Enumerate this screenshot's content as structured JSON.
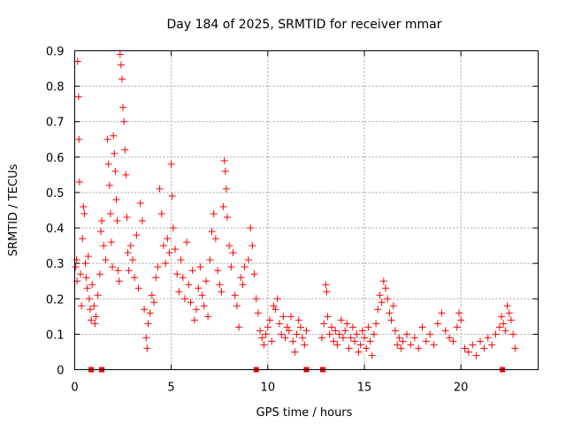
{
  "chart_data": {
    "type": "scatter",
    "title": "Day 184 of 2025, SRMTID for receiver mmar",
    "xlabel": "GPS time / hours",
    "ylabel": "SRMTID / TECUs",
    "xlim": [
      0,
      24
    ],
    "ylim": [
      0,
      0.9
    ],
    "xticks": [
      0,
      5,
      10,
      15,
      20
    ],
    "yticks": [
      0,
      0.1,
      0.2,
      0.3,
      0.4,
      0.5,
      0.6,
      0.7,
      0.8,
      0.9
    ],
    "grid": true,
    "marker": "+",
    "color": "#ff0000",
    "series": [
      {
        "name": "SRMTID",
        "points": [
          [
            0.05,
            0.29
          ],
          [
            0.1,
            0.31
          ],
          [
            0.12,
            0.25
          ],
          [
            0.15,
            0.87
          ],
          [
            0.2,
            0.77
          ],
          [
            0.22,
            0.65
          ],
          [
            0.25,
            0.53
          ],
          [
            0.3,
            0.27
          ],
          [
            0.35,
            0.18
          ],
          [
            0.4,
            0.37
          ],
          [
            0.45,
            0.46
          ],
          [
            0.5,
            0.44
          ],
          [
            0.55,
            0.3
          ],
          [
            0.6,
            0.26
          ],
          [
            0.65,
            0.23
          ],
          [
            0.7,
            0.32
          ],
          [
            0.75,
            0.2
          ],
          [
            0.8,
            0.17
          ],
          [
            0.85,
            0.14
          ],
          [
            0.9,
            0.24
          ],
          [
            1.0,
            0.18
          ],
          [
            1.05,
            0.13
          ],
          [
            1.1,
            0.15
          ],
          [
            1.2,
            0.21
          ],
          [
            1.3,
            0.27
          ],
          [
            1.35,
            0.39
          ],
          [
            1.4,
            0.42
          ],
          [
            1.5,
            0.35
          ],
          [
            1.6,
            0.31
          ],
          [
            1.7,
            0.65
          ],
          [
            1.75,
            0.58
          ],
          [
            1.8,
            0.52
          ],
          [
            1.85,
            0.44
          ],
          [
            1.9,
            0.36
          ],
          [
            1.95,
            0.29
          ],
          [
            2.0,
            0.66
          ],
          [
            2.05,
            0.61
          ],
          [
            2.1,
            0.56
          ],
          [
            2.15,
            0.48
          ],
          [
            2.2,
            0.42
          ],
          [
            2.25,
            0.28
          ],
          [
            2.3,
            0.25
          ],
          [
            2.35,
            0.89
          ],
          [
            2.4,
            0.86
          ],
          [
            2.45,
            0.82
          ],
          [
            2.5,
            0.74
          ],
          [
            2.55,
            0.7
          ],
          [
            2.6,
            0.62
          ],
          [
            2.65,
            0.55
          ],
          [
            2.7,
            0.43
          ],
          [
            2.75,
            0.33
          ],
          [
            2.8,
            0.28
          ],
          [
            2.9,
            0.35
          ],
          [
            3.0,
            0.31
          ],
          [
            3.1,
            0.26
          ],
          [
            3.2,
            0.38
          ],
          [
            3.3,
            0.23
          ],
          [
            3.4,
            0.47
          ],
          [
            3.5,
            0.42
          ],
          [
            3.6,
            0.17
          ],
          [
            3.7,
            0.09
          ],
          [
            3.75,
            0.06
          ],
          [
            3.8,
            0.13
          ],
          [
            3.9,
            0.16
          ],
          [
            4.0,
            0.21
          ],
          [
            4.1,
            0.19
          ],
          [
            4.2,
            0.26
          ],
          [
            4.3,
            0.29
          ],
          [
            4.4,
            0.51
          ],
          [
            4.5,
            0.44
          ],
          [
            4.6,
            0.35
          ],
          [
            4.7,
            0.3
          ],
          [
            4.8,
            0.37
          ],
          [
            4.9,
            0.33
          ],
          [
            5.0,
            0.58
          ],
          [
            5.05,
            0.49
          ],
          [
            5.1,
            0.4
          ],
          [
            5.2,
            0.34
          ],
          [
            5.3,
            0.27
          ],
          [
            5.4,
            0.22
          ],
          [
            5.5,
            0.31
          ],
          [
            5.6,
            0.26
          ],
          [
            5.7,
            0.2
          ],
          [
            5.8,
            0.36
          ],
          [
            5.9,
            0.24
          ],
          [
            6.0,
            0.19
          ],
          [
            6.1,
            0.28
          ],
          [
            6.2,
            0.14
          ],
          [
            6.3,
            0.17
          ],
          [
            6.4,
            0.23
          ],
          [
            6.5,
            0.29
          ],
          [
            6.6,
            0.21
          ],
          [
            6.7,
            0.18
          ],
          [
            6.8,
            0.25
          ],
          [
            6.9,
            0.15
          ],
          [
            7.0,
            0.31
          ],
          [
            7.1,
            0.39
          ],
          [
            7.2,
            0.44
          ],
          [
            7.3,
            0.37
          ],
          [
            7.4,
            0.28
          ],
          [
            7.5,
            0.24
          ],
          [
            7.6,
            0.22
          ],
          [
            7.7,
            0.46
          ],
          [
            7.75,
            0.59
          ],
          [
            7.8,
            0.56
          ],
          [
            7.85,
            0.51
          ],
          [
            7.9,
            0.43
          ],
          [
            8.0,
            0.35
          ],
          [
            8.1,
            0.29
          ],
          [
            8.2,
            0.33
          ],
          [
            8.3,
            0.21
          ],
          [
            8.4,
            0.18
          ],
          [
            8.5,
            0.12
          ],
          [
            8.6,
            0.26
          ],
          [
            8.7,
            0.24
          ],
          [
            8.8,
            0.29
          ],
          [
            9.0,
            0.31
          ],
          [
            9.1,
            0.4
          ],
          [
            9.2,
            0.35
          ],
          [
            9.3,
            0.27
          ],
          [
            9.4,
            0.2
          ],
          [
            9.5,
            0.16
          ],
          [
            9.6,
            0.11
          ],
          [
            9.7,
            0.09
          ],
          [
            9.8,
            0.07
          ],
          [
            9.9,
            0.1
          ],
          [
            10.0,
            0.12
          ],
          [
            10.1,
            0.14
          ],
          [
            10.2,
            0.08
          ],
          [
            10.3,
            0.18
          ],
          [
            10.4,
            0.17
          ],
          [
            10.5,
            0.2
          ],
          [
            10.6,
            0.13
          ],
          [
            10.7,
            0.1
          ],
          [
            10.8,
            0.15
          ],
          [
            10.9,
            0.09
          ],
          [
            11.0,
            0.12
          ],
          [
            11.1,
            0.11
          ],
          [
            11.2,
            0.15
          ],
          [
            11.3,
            0.08
          ],
          [
            11.4,
            0.05
          ],
          [
            11.5,
            0.1
          ],
          [
            11.6,
            0.14
          ],
          [
            11.7,
            0.12
          ],
          [
            11.8,
            0.09
          ],
          [
            11.9,
            0.07
          ],
          [
            12.0,
            0.11
          ],
          [
            12.8,
            0.09
          ],
          [
            12.9,
            0.13
          ],
          [
            13.0,
            0.24
          ],
          [
            13.05,
            0.22
          ],
          [
            13.1,
            0.15
          ],
          [
            13.2,
            0.1
          ],
          [
            13.3,
            0.12
          ],
          [
            13.4,
            0.08
          ],
          [
            13.5,
            0.11
          ],
          [
            13.6,
            0.07
          ],
          [
            13.7,
            0.1
          ],
          [
            13.8,
            0.14
          ],
          [
            13.9,
            0.09
          ],
          [
            14.0,
            0.11
          ],
          [
            14.1,
            0.13
          ],
          [
            14.2,
            0.06
          ],
          [
            14.3,
            0.09
          ],
          [
            14.4,
            0.12
          ],
          [
            14.5,
            0.08
          ],
          [
            14.6,
            0.1
          ],
          [
            14.7,
            0.05
          ],
          [
            14.8,
            0.07
          ],
          [
            14.9,
            0.11
          ],
          [
            15.0,
            0.09
          ],
          [
            15.1,
            0.06
          ],
          [
            15.2,
            0.12
          ],
          [
            15.3,
            0.08
          ],
          [
            15.4,
            0.04
          ],
          [
            15.5,
            0.1
          ],
          [
            15.6,
            0.13
          ],
          [
            15.7,
            0.17
          ],
          [
            15.8,
            0.21
          ],
          [
            15.9,
            0.19
          ],
          [
            16.0,
            0.25
          ],
          [
            16.1,
            0.23
          ],
          [
            16.2,
            0.2
          ],
          [
            16.3,
            0.16
          ],
          [
            16.4,
            0.14
          ],
          [
            16.5,
            0.18
          ],
          [
            16.6,
            0.11
          ],
          [
            16.7,
            0.07
          ],
          [
            16.8,
            0.09
          ],
          [
            16.9,
            0.06
          ],
          [
            17.0,
            0.08
          ],
          [
            17.2,
            0.1
          ],
          [
            17.4,
            0.07
          ],
          [
            17.6,
            0.09
          ],
          [
            17.8,
            0.06
          ],
          [
            18.0,
            0.12
          ],
          [
            18.2,
            0.08
          ],
          [
            18.4,
            0.1
          ],
          [
            18.6,
            0.07
          ],
          [
            18.8,
            0.13
          ],
          [
            19.0,
            0.16
          ],
          [
            19.2,
            0.11
          ],
          [
            19.4,
            0.09
          ],
          [
            19.6,
            0.08
          ],
          [
            19.8,
            0.12
          ],
          [
            19.9,
            0.16
          ],
          [
            20.0,
            0.14
          ],
          [
            20.2,
            0.06
          ],
          [
            20.4,
            0.05
          ],
          [
            20.6,
            0.07
          ],
          [
            20.8,
            0.04
          ],
          [
            21.0,
            0.08
          ],
          [
            21.2,
            0.06
          ],
          [
            21.4,
            0.09
          ],
          [
            21.6,
            0.07
          ],
          [
            21.8,
            0.1
          ],
          [
            22.0,
            0.12
          ],
          [
            22.1,
            0.15
          ],
          [
            22.2,
            0.13
          ],
          [
            22.3,
            0.11
          ],
          [
            22.4,
            0.18
          ],
          [
            22.5,
            0.16
          ],
          [
            22.6,
            0.14
          ],
          [
            22.7,
            0.1
          ],
          [
            22.8,
            0.06
          ]
        ]
      }
    ],
    "baseline_markers": [
      0.85,
      1.4,
      9.4,
      12.0,
      12.85,
      22.15
    ]
  }
}
